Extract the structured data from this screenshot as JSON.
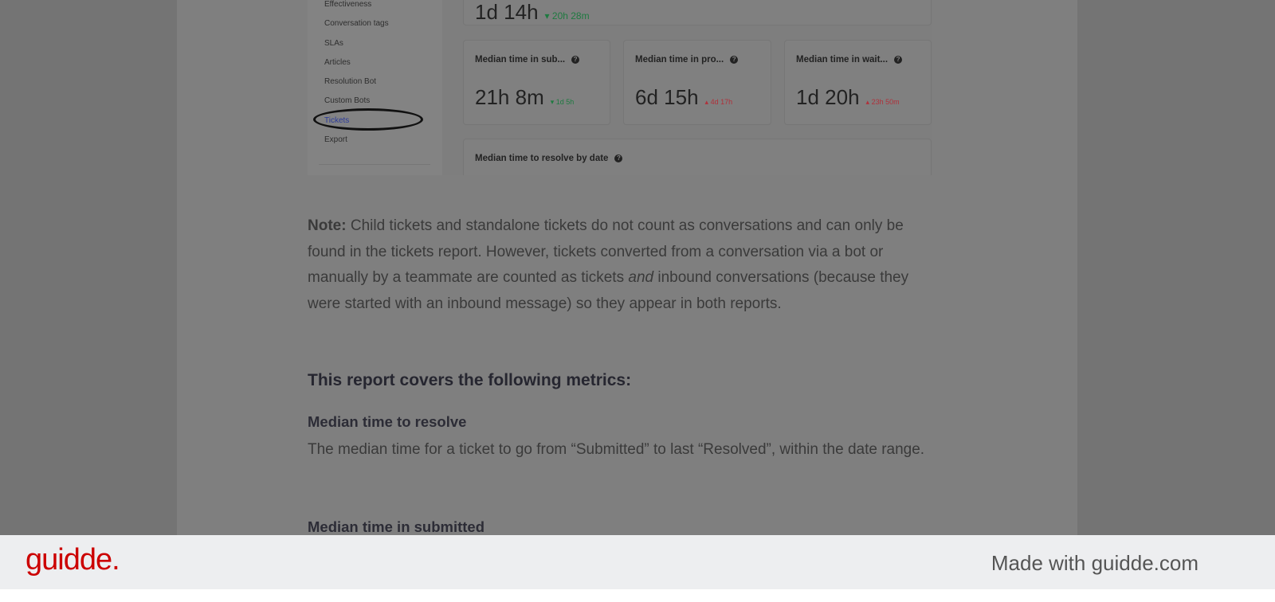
{
  "sidebar": {
    "items": [
      "Effectiveness",
      "Conversation tags",
      "SLAs",
      "Articles",
      "Resolution Bot",
      "Custom Bots",
      "Tickets",
      "Export"
    ],
    "active": "Tickets"
  },
  "top_card": {
    "value": "1d 14h",
    "delta": "20h 28m"
  },
  "cards": [
    {
      "title": "Median time in sub...",
      "value": "21h 8m",
      "delta": "1d 5h",
      "trend": "down"
    },
    {
      "title": "Median time in pro...",
      "value": "6d 15h",
      "delta": "4d 17h",
      "trend": "up"
    },
    {
      "title": "Median time in wait...",
      "value": "1d 20h",
      "delta": "23h 50m",
      "trend": "up"
    }
  ],
  "chart_card": {
    "title": "Median time to resolve by date"
  },
  "note": {
    "label": "Note:",
    "text1": " Child tickets and standalone tickets do not count as conversations and can only be found in the tickets report. However, tickets converted from a conversation via a bot or manually by a teammate are counted as tickets ",
    "em": "and",
    "text2": " inbound conversations (because they were started with an inbound message) so they appear in both reports."
  },
  "metrics_heading": "This report covers the following metrics:",
  "metrics": [
    {
      "title": "Median time to resolve",
      "desc": "The median time for a ticket to go from “Submitted” to last “Resolved”, within the date range."
    },
    {
      "title": "Median time in submitted"
    }
  ],
  "footer": {
    "logo": "guidde.",
    "made_with": "Made with guidde.com"
  },
  "colors": {
    "brand": "#cc0000",
    "up": "#b0303a",
    "down": "#1e7a40",
    "active_link": "#2b3a9a"
  }
}
